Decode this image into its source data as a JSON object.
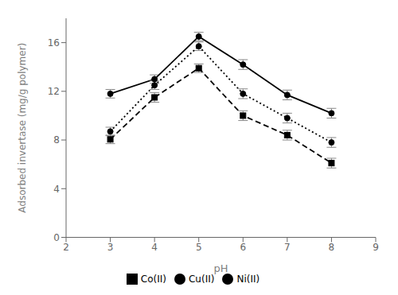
{
  "chart_data": {
    "type": "line",
    "x": [
      3,
      4,
      5,
      6,
      7,
      8
    ],
    "xlabel": "pH",
    "ylabel": "Adsorbed invertase (mg/g polymer)",
    "xlim": [
      2,
      9
    ],
    "xticks": [
      2,
      3,
      4,
      5,
      6,
      7,
      8,
      9
    ],
    "ylim": [
      0,
      18
    ],
    "yticks": [
      0,
      4,
      8,
      12,
      16
    ],
    "grid": false,
    "legend": "bottom",
    "series": [
      {
        "name": "Cu(II)",
        "color": "#000000",
        "line_style": "solid",
        "marker": "circle",
        "values": [
          11.8,
          13.0,
          16.5,
          14.2,
          11.7,
          10.2
        ],
        "errors": [
          0.35,
          0.35,
          0.35,
          0.4,
          0.4,
          0.4
        ]
      },
      {
        "name": "Co(II)",
        "color": "#000000",
        "line_style": "dashed",
        "marker": "square",
        "values": [
          8.05,
          11.5,
          13.9,
          10.0,
          8.4,
          6.1
        ],
        "errors": [
          0.35,
          0.4,
          0.35,
          0.4,
          0.4,
          0.4
        ]
      },
      {
        "name": "Ni(II)",
        "color": "#000000",
        "line_style": "dotted",
        "marker": "circle",
        "values": [
          8.7,
          12.5,
          15.7,
          11.8,
          9.8,
          7.8
        ],
        "errors": [
          0.35,
          0.35,
          0.35,
          0.4,
          0.4,
          0.4
        ]
      }
    ]
  }
}
